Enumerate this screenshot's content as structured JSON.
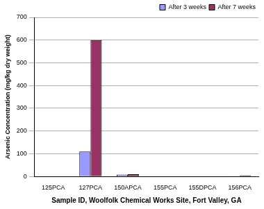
{
  "chart_data": {
    "type": "bar",
    "x_label": "Sample ID, Woolfolk Chemical Works Site, Fort Valley, GA",
    "y_label": "Arsenic Concentration (mg/kg dry weight)",
    "categories": [
      "125PCA",
      "127PCA",
      "150APCA",
      "155PCA",
      "155DPCA",
      "156PCA"
    ],
    "series": [
      {
        "name": "After 3 weeks",
        "color": "#9999ff",
        "values": [
          1,
          110,
          8,
          1,
          1,
          2
        ]
      },
      {
        "name": "After 7 weeks",
        "color": "#993366",
        "values": [
          1,
          600,
          10,
          1,
          1,
          5
        ]
      }
    ],
    "ylim": [
      0,
      700
    ],
    "yticks": [
      0,
      100,
      200,
      300,
      400,
      500,
      600,
      700
    ],
    "grid": true,
    "legend": "upper right"
  }
}
